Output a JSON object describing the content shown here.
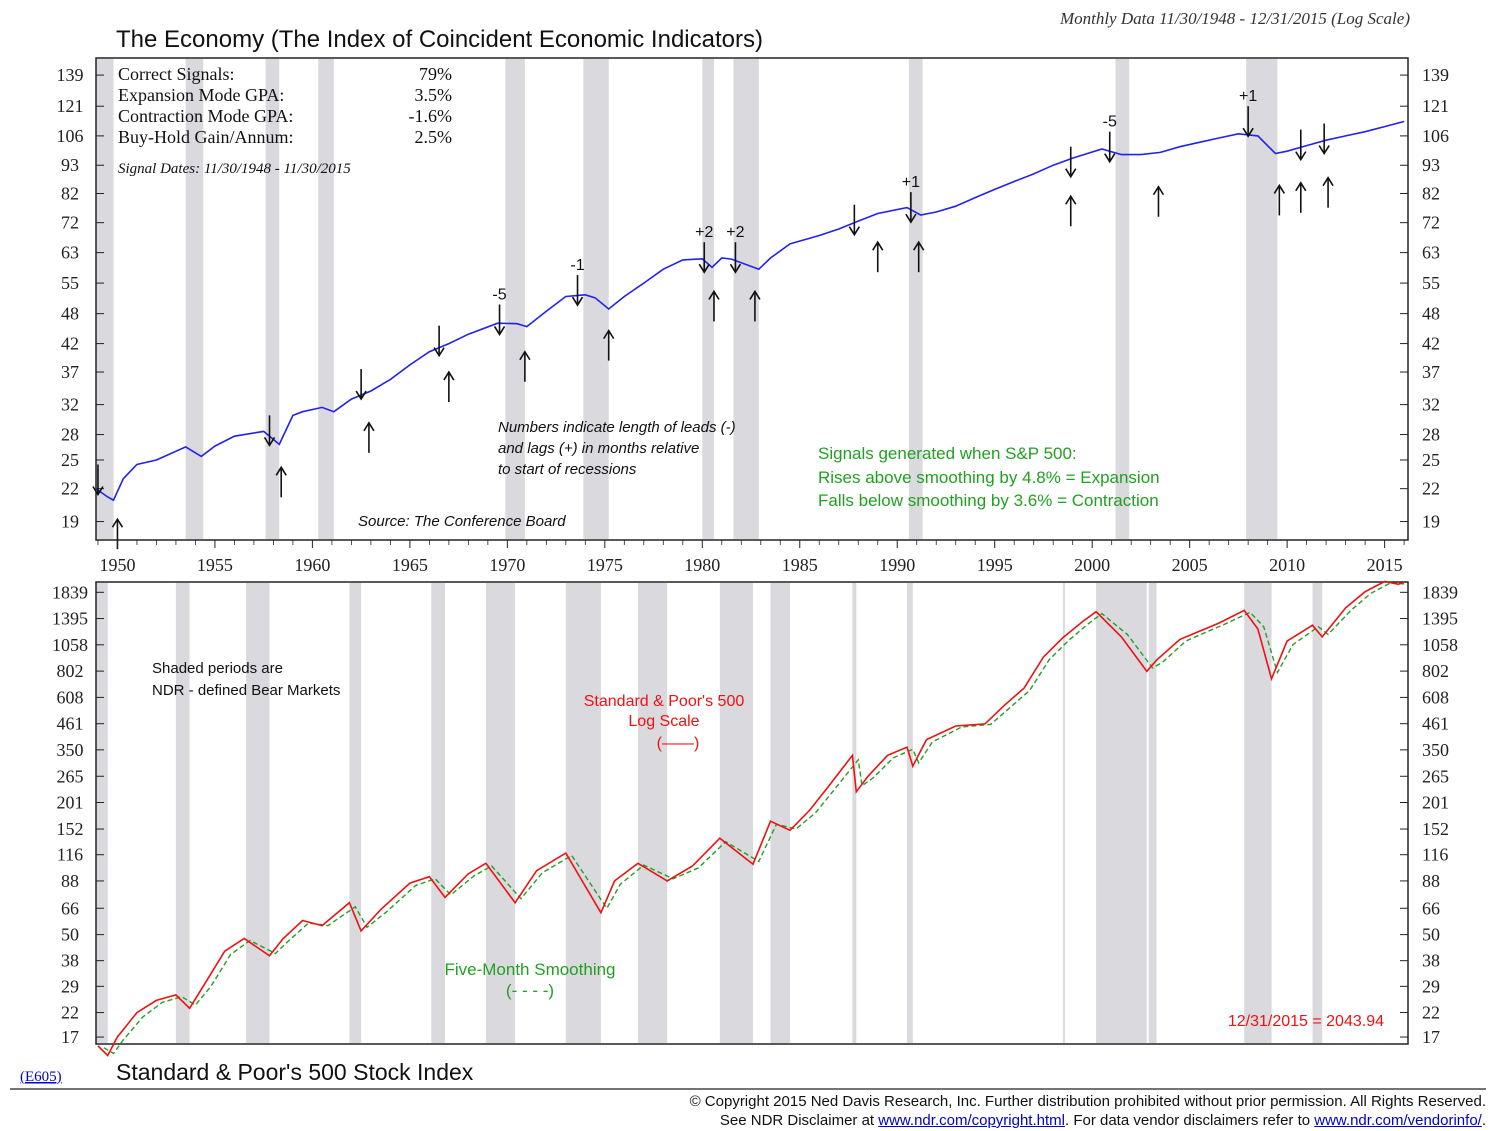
{
  "header": {
    "title": "The Economy (The Index of Coincident Economic Indicators)",
    "subtitle": "Monthly Data 11/30/1948 - 12/31/2015 (Log Scale)"
  },
  "stats": {
    "rows": [
      {
        "label": "Correct Signals:",
        "value": "79%"
      },
      {
        "label": "Expansion Mode GPA:",
        "value": "3.5%"
      },
      {
        "label": "Contraction Mode GPA:",
        "value": "-1.6%"
      },
      {
        "label": "Buy-Hold Gain/Annum:",
        "value": "2.5%"
      }
    ],
    "signal_dates": "Signal Dates: 11/30/1948 - 11/30/2015"
  },
  "notes": {
    "leads_lags": [
      "Numbers indicate length of leads (-)",
      "and lags (+) in months relative",
      "to start of recessions"
    ],
    "source": "Source: The Conference Board",
    "signals": [
      "Signals generated when S&P 500:",
      "Rises above smoothing by 4.8% = Expansion",
      "Falls below smoothing by 3.6% = Contraction"
    ]
  },
  "lower": {
    "title": "Standard & Poor's 500 Stock Index",
    "code": "(E605)",
    "shaded_note": [
      "Shaded periods are",
      "NDR - defined Bear Markets"
    ],
    "sp_label": [
      "Standard & Poor's 500",
      "Log Scale",
      "(——)"
    ],
    "smooth_label": [
      "Five-Month Smoothing",
      "(- - - -)"
    ],
    "last_value": "12/31/2015 = 2043.94"
  },
  "footer": {
    "line1": "© Copyright 2015 Ned Davis Research, Inc.  Further distribution prohibited without prior permission.  All Rights Reserved.",
    "line2_pre": "See NDR Disclaimer at ",
    "link1": "www.ndr.com/copyright.html",
    "line2_mid": ". For data vendor disclaimers refer to ",
    "link2": "www.ndr.com/vendorinfo/",
    "line2_post": "."
  },
  "colors": {
    "economy": "#2222ee",
    "sp500": "#ee1111",
    "smoothing": "#22a022",
    "shade": "#d9d9de"
  },
  "chart_data": [
    {
      "type": "line",
      "title": "The Economy (The Index of Coincident Economic Indicators)",
      "scale": "log",
      "ylim": [
        17.5,
        150
      ],
      "xlim": [
        1948.9,
        2016.2
      ],
      "yticks": [
        19,
        22,
        25,
        28,
        32,
        37,
        42,
        48,
        55,
        63,
        72,
        82,
        93,
        106,
        121,
        139
      ],
      "xticks": [
        1950,
        1955,
        1960,
        1965,
        1970,
        1975,
        1980,
        1985,
        1990,
        1995,
        2000,
        2005,
        2010,
        2015
      ],
      "recessions": [
        [
          1948.9,
          1949.8
        ],
        [
          1953.5,
          1954.4
        ],
        [
          1957.6,
          1958.3
        ],
        [
          1960.3,
          1961.1
        ],
        [
          1969.9,
          1970.9
        ],
        [
          1973.9,
          1975.2
        ],
        [
          1980.0,
          1980.6
        ],
        [
          1981.6,
          1982.9
        ],
        [
          1990.6,
          1991.3
        ],
        [
          2001.2,
          2001.9
        ],
        [
          2007.9,
          2009.5
        ]
      ],
      "series": [
        {
          "name": "",
          "x": [
            1948.9,
            1949.5,
            1949.8,
            1950.3,
            1951.0,
            1952.0,
            1953.5,
            1954.3,
            1955.0,
            1956.0,
            1957.5,
            1958.3,
            1959.0,
            1959.5,
            1960.5,
            1961.1,
            1962.0,
            1963.0,
            1964.0,
            1965.0,
            1966.0,
            1967.0,
            1968.0,
            1969.5,
            1970.5,
            1971.0,
            1972.0,
            1973.0,
            1974.0,
            1974.5,
            1975.2,
            1976.0,
            1977.0,
            1978.0,
            1979.0,
            1980.0,
            1980.5,
            1981.0,
            1981.5,
            1982.9,
            1983.5,
            1984.5,
            1986.0,
            1987.0,
            1988.0,
            1989.0,
            1990.5,
            1991.2,
            1992.0,
            1993.0,
            1994.0,
            1995.0,
            1996.0,
            1997.0,
            1998.0,
            1999.0,
            2000.5,
            2001.5,
            2002.5,
            2003.5,
            2004.5,
            2005.5,
            2006.5,
            2007.5,
            2008.5,
            2009.4,
            2010.0,
            2011.0,
            2012.0,
            2013.0,
            2014.0,
            2015.0,
            2016.0
          ],
          "values": [
            22.0,
            21.2,
            20.9,
            23.0,
            24.5,
            25.0,
            26.5,
            25.4,
            26.6,
            27.8,
            28.4,
            26.8,
            30.5,
            31.0,
            31.6,
            31.0,
            32.8,
            34.0,
            35.8,
            38.2,
            40.5,
            42.0,
            43.8,
            46.0,
            45.9,
            45.3,
            48.5,
            51.8,
            52.2,
            51.5,
            49.0,
            51.8,
            55.0,
            58.5,
            61.0,
            61.3,
            59.0,
            61.5,
            61.2,
            58.5,
            61.5,
            65.5,
            68.0,
            70.0,
            72.5,
            75.0,
            77.0,
            74.5,
            75.5,
            77.5,
            80.5,
            83.5,
            86.5,
            89.5,
            93.0,
            96.0,
            100.0,
            97.5,
            97.5,
            98.5,
            101.0,
            103.0,
            105.0,
            107.0,
            106.0,
            98.0,
            99.0,
            101.5,
            104.0,
            106.0,
            108.0,
            110.5,
            113.0
          ]
        }
      ],
      "signals": {
        "down": [
          {
            "x": 1949.0,
            "y": 24.5
          },
          {
            "x": 1957.8,
            "y": 30.5
          },
          {
            "x": 1962.5,
            "y": 37.5
          },
          {
            "x": 1966.5,
            "y": 45.5
          },
          {
            "x": 1969.6,
            "y": 50.0,
            "label": "-5"
          },
          {
            "x": 1973.6,
            "y": 57.0,
            "label": "-1"
          },
          {
            "x": 1980.1,
            "y": 66.0,
            "label": "+2"
          },
          {
            "x": 1981.7,
            "y": 66.0,
            "label": "+2"
          },
          {
            "x": 1987.8,
            "y": 78.0
          },
          {
            "x": 1990.7,
            "y": 82.5,
            "label": "+1"
          },
          {
            "x": 1998.9,
            "y": 101.0
          },
          {
            "x": 2000.9,
            "y": 108.0,
            "label": "-5"
          },
          {
            "x": 2008.0,
            "y": 121.0,
            "label": "+1"
          },
          {
            "x": 2010.7,
            "y": 109.0
          },
          {
            "x": 2011.9,
            "y": 112.0
          }
        ],
        "up": [
          {
            "x": 1950.0,
            "y": 19.2
          },
          {
            "x": 1958.4,
            "y": 24.2
          },
          {
            "x": 1962.9,
            "y": 29.5
          },
          {
            "x": 1967.0,
            "y": 37.0
          },
          {
            "x": 1970.9,
            "y": 40.5
          },
          {
            "x": 1975.2,
            "y": 44.5
          },
          {
            "x": 1980.6,
            "y": 53.0
          },
          {
            "x": 1982.7,
            "y": 53.0
          },
          {
            "x": 1989.0,
            "y": 66.0
          },
          {
            "x": 1991.1,
            "y": 66.0
          },
          {
            "x": 1998.9,
            "y": 81.0
          },
          {
            "x": 2003.4,
            "y": 84.5
          },
          {
            "x": 2009.6,
            "y": 85.0
          },
          {
            "x": 2010.7,
            "y": 86.0
          },
          {
            "x": 2012.1,
            "y": 88.0
          }
        ]
      }
    },
    {
      "type": "line",
      "title": "Standard & Poor's 500 Stock Index",
      "scale": "log",
      "ylim": [
        15.8,
        2050
      ],
      "xlim": [
        1948.9,
        2016.2
      ],
      "yticks": [
        17,
        22,
        29,
        38,
        50,
        66,
        88,
        116,
        152,
        201,
        265,
        350,
        461,
        608,
        802,
        1058,
        1395,
        1839
      ],
      "bear_markets": [
        [
          1948.9,
          1949.5
        ],
        [
          1953.0,
          1953.7
        ],
        [
          1956.6,
          1957.8
        ],
        [
          1961.9,
          1962.5
        ],
        [
          1966.1,
          1966.8
        ],
        [
          1968.9,
          1970.4
        ],
        [
          1973.0,
          1974.8
        ],
        [
          1976.7,
          1978.2
        ],
        [
          1980.9,
          1982.6
        ],
        [
          1983.5,
          1984.5
        ],
        [
          1987.7,
          1987.9
        ],
        [
          1990.5,
          1990.8
        ],
        [
          1998.5,
          1998.6
        ],
        [
          2000.2,
          2002.8
        ],
        [
          2002.9,
          2003.3
        ],
        [
          2007.8,
          2009.2
        ],
        [
          2011.3,
          2011.8
        ]
      ],
      "series": [
        {
          "name": "Standard & Poor's 500",
          "x": [
            1949.0,
            1949.5,
            1950.0,
            1951.0,
            1952.0,
            1953.0,
            1953.7,
            1954.5,
            1955.5,
            1956.5,
            1957.8,
            1958.5,
            1959.5,
            1960.5,
            1961.9,
            1962.5,
            1963.5,
            1965.0,
            1966.0,
            1966.8,
            1968.0,
            1968.9,
            1970.4,
            1971.5,
            1973.0,
            1974.8,
            1975.5,
            1976.7,
            1978.2,
            1979.5,
            1980.9,
            1982.6,
            1983.5,
            1984.5,
            1985.5,
            1986.5,
            1987.7,
            1987.9,
            1988.5,
            1989.5,
            1990.5,
            1990.8,
            1991.5,
            1993.0,
            1994.5,
            1995.5,
            1996.5,
            1997.5,
            1998.5,
            1999.5,
            2000.2,
            2001.5,
            2002.8,
            2003.3,
            2004.5,
            2005.5,
            2006.5,
            2007.8,
            2008.5,
            2009.2,
            2010.0,
            2011.3,
            2011.8,
            2013.0,
            2014.0,
            2015.0,
            2015.7,
            2016.0
          ],
          "values": [
            15.5,
            14.0,
            17.0,
            22.0,
            25.0,
            26.5,
            23.0,
            30.0,
            42.0,
            48.0,
            40.0,
            48.0,
            58.0,
            55.0,
            70.0,
            52.0,
            65.0,
            86.0,
            92.0,
            74.0,
            95.0,
            106.0,
            70.0,
            98.0,
            118.0,
            63.0,
            88.0,
            106.0,
            88.0,
            103.0,
            138.0,
            105.0,
            165.0,
            150.0,
            185.0,
            240.0,
            330.0,
            225.0,
            265.0,
            330.0,
            360.0,
            295.0,
            390.0,
            450.0,
            460.0,
            560.0,
            670.0,
            930.0,
            1140.0,
            1350.0,
            1500.0,
            1150.0,
            800.0,
            900.0,
            1120.0,
            1220.0,
            1330.0,
            1520.0,
            1250.0,
            740.0,
            1100.0,
            1300.0,
            1150.0,
            1560.0,
            1850.0,
            2060.0,
            2000.0,
            2043.94
          ]
        },
        {
          "name": "Five-Month Smoothing",
          "x": [
            1949.3,
            1949.8,
            1950.3,
            1951.3,
            1952.3,
            1953.3,
            1954.0,
            1954.8,
            1955.8,
            1956.8,
            1958.1,
            1958.8,
            1959.8,
            1960.8,
            1962.2,
            1962.8,
            1963.8,
            1965.3,
            1966.3,
            1967.1,
            1968.3,
            1969.2,
            1970.7,
            1971.8,
            1973.3,
            1975.1,
            1975.8,
            1977.0,
            1978.5,
            1979.8,
            1981.2,
            1982.9,
            1983.8,
            1984.8,
            1985.8,
            1986.8,
            1988.0,
            1988.2,
            1988.8,
            1989.8,
            1990.8,
            1991.1,
            1991.8,
            1993.3,
            1994.8,
            1995.8,
            1996.8,
            1997.8,
            1998.8,
            1999.8,
            2000.5,
            2001.8,
            2003.1,
            2003.6,
            2004.8,
            2005.8,
            2006.8,
            2008.1,
            2008.8,
            2009.5,
            2010.3,
            2011.6,
            2012.1,
            2013.3,
            2014.3,
            2015.3,
            2016.0
          ],
          "values": [
            15.2,
            14.3,
            16.5,
            21.0,
            24.5,
            26.0,
            23.8,
            29.0,
            40.5,
            47.0,
            41.0,
            47.0,
            56.5,
            55.0,
            67.0,
            54.0,
            63.5,
            84.0,
            90.0,
            76.0,
            93.0,
            103.0,
            73.0,
            96.0,
            115.0,
            66.0,
            85.0,
            104.0,
            90.0,
            101.0,
            133.0,
            108.0,
            160.0,
            152.0,
            180.0,
            232.0,
            315.0,
            240.0,
            262.0,
            322.0,
            352.0,
            305.0,
            380.0,
            445.0,
            458.0,
            548.0,
            655.0,
            905.0,
            1110.0,
            1320.0,
            1470.0,
            1180.0,
            830.0,
            880.0,
            1100.0,
            1205.0,
            1315.0,
            1490.0,
            1280.0,
            790.0,
            1060.0,
            1280.0,
            1180.0,
            1530.0,
            1820.0,
            2030.0,
            2010.0
          ]
        }
      ]
    }
  ]
}
